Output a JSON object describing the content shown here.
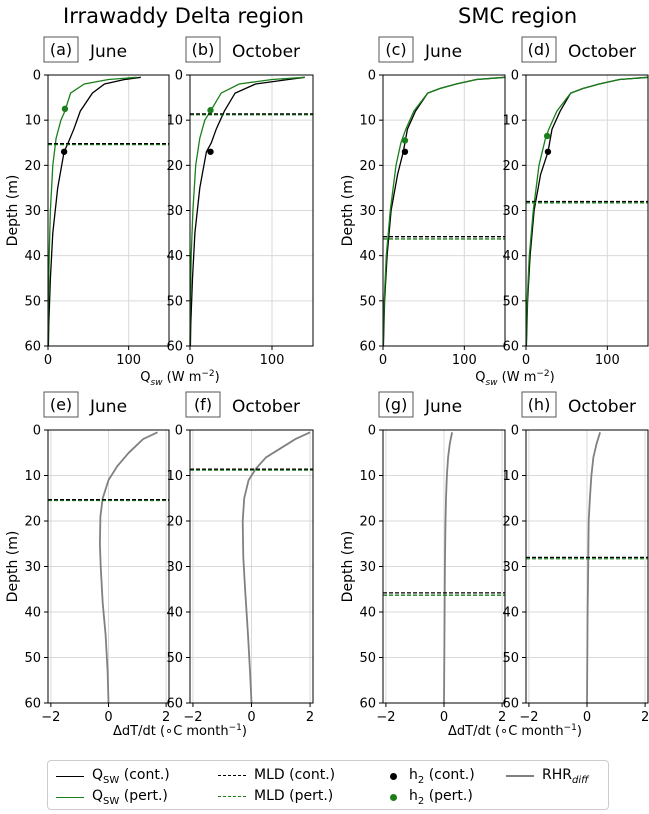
{
  "titles": {
    "left_region": "Irrawaddy Delta region",
    "right_region": "SMC region"
  },
  "colors": {
    "control": "#000000",
    "perturbed": "#1a7f1a",
    "rhr_diff": "#808080",
    "grid": "#d9d9d9"
  },
  "legend": {
    "qsw_cont": "Q_SW (cont.)",
    "qsw_pert": "Q_SW (pert.)",
    "mld_cont": "MLD (cont.)",
    "mld_pert": "MLD (pert.)",
    "h2_cont": "h_2 (cont.)",
    "h2_pert": "h_2 (pert.)",
    "rhr_diff": "RHR_diff"
  },
  "chart_data": [
    {
      "type": "line",
      "tag": "(a)",
      "title": "June",
      "xlim": [
        0,
        150
      ],
      "ylim": [
        60,
        0
      ],
      "y_inverted": true,
      "xticks": [
        0,
        100
      ],
      "yticks": [
        0,
        10,
        20,
        30,
        40,
        50,
        60
      ],
      "ylabel": "Depth (m)",
      "xlabel": "",
      "series": [
        {
          "role": "qsw_cont",
          "x": [
            115,
            95,
            70,
            55,
            40,
            32,
            25,
            20,
            12,
            6,
            3,
            1,
            0.5
          ],
          "y": [
            0.5,
            1,
            2,
            4,
            8,
            12,
            15,
            17,
            25,
            35,
            45,
            55,
            60
          ]
        },
        {
          "role": "qsw_pert",
          "x": [
            110,
            75,
            45,
            28,
            21,
            16,
            10,
            6,
            3,
            1.5,
            0.5,
            0.2,
            0
          ],
          "y": [
            0.5,
            1,
            2,
            4,
            8,
            10,
            14,
            20,
            30,
            40,
            50,
            55,
            60
          ]
        }
      ],
      "mld": {
        "cont": 15.2,
        "pert": 15.4
      },
      "h2": {
        "cont": {
          "x": 20,
          "y": 17
        },
        "pert": {
          "x": 21,
          "y": 7.5
        }
      }
    },
    {
      "type": "line",
      "tag": "(b)",
      "title": "October",
      "xlim": [
        0,
        150
      ],
      "ylim": [
        60,
        0
      ],
      "y_inverted": true,
      "xticks": [
        0,
        100
      ],
      "yticks": [
        0,
        10,
        20,
        30,
        40,
        50,
        60
      ],
      "ylabel": "",
      "xlabel": "",
      "series": [
        {
          "role": "qsw_cont",
          "x": [
            140,
            120,
            80,
            55,
            42,
            32,
            26,
            20,
            12,
            6,
            3,
            1,
            0.5
          ],
          "y": [
            0.5,
            1,
            2,
            4,
            8,
            12,
            15,
            17,
            25,
            35,
            45,
            55,
            60
          ]
        },
        {
          "role": "qsw_pert",
          "x": [
            140,
            100,
            60,
            38,
            25,
            18,
            12,
            7,
            3.5,
            1.5,
            0.5,
            0.2,
            0
          ],
          "y": [
            0.5,
            1,
            2,
            4,
            8,
            10,
            14,
            20,
            30,
            40,
            50,
            55,
            60
          ]
        }
      ],
      "mld": {
        "cont": 8.6,
        "pert": 8.8
      },
      "h2": {
        "cont": {
          "x": 25,
          "y": 17
        },
        "pert": {
          "x": 25,
          "y": 7.8
        }
      }
    },
    {
      "type": "line",
      "tag": "(c)",
      "title": "June",
      "xlim": [
        0,
        150
      ],
      "ylim": [
        60,
        0
      ],
      "y_inverted": true,
      "xticks": [
        0,
        100
      ],
      "yticks": [
        0,
        10,
        20,
        30,
        40,
        50,
        60
      ],
      "ylabel": "Depth (m)",
      "xlabel": "",
      "series": [
        {
          "role": "qsw_cont",
          "x": [
            150,
            115,
            90,
            70,
            55,
            40,
            30,
            25,
            18,
            10,
            5,
            2,
            0.5
          ],
          "y": [
            0.5,
            1,
            2,
            3,
            4,
            8,
            12,
            17,
            22,
            30,
            40,
            50,
            60
          ]
        },
        {
          "role": "qsw_pert",
          "x": [
            150,
            115,
            90,
            70,
            55,
            38,
            28,
            22,
            16,
            9,
            4,
            1.5,
            0.3
          ],
          "y": [
            0.5,
            1,
            2,
            3,
            4,
            8,
            12,
            15,
            20,
            30,
            40,
            50,
            60
          ]
        }
      ],
      "mld": {
        "cont": 35.8,
        "pert": 36.3
      },
      "h2": {
        "cont": {
          "x": 27,
          "y": 17
        },
        "pert": {
          "x": 27,
          "y": 14.5
        }
      }
    },
    {
      "type": "line",
      "tag": "(d)",
      "title": "October",
      "xlim": [
        0,
        150
      ],
      "ylim": [
        60,
        0
      ],
      "y_inverted": true,
      "xticks": [
        0,
        100
      ],
      "yticks": [
        0,
        10,
        20,
        30,
        40,
        50,
        60
      ],
      "ylabel": "",
      "xlabel": "",
      "series": [
        {
          "role": "qsw_cont",
          "x": [
            150,
            115,
            90,
            70,
            55,
            42,
            32,
            27,
            18,
            10,
            5,
            2,
            0.5
          ],
          "y": [
            0.5,
            1,
            2,
            3,
            4,
            8,
            12,
            17,
            22,
            30,
            40,
            50,
            60
          ]
        },
        {
          "role": "qsw_pert",
          "x": [
            150,
            115,
            90,
            70,
            55,
            38,
            28,
            24,
            16,
            9,
            4,
            1.5,
            0.3
          ],
          "y": [
            0.5,
            1,
            2,
            3,
            4,
            8,
            12,
            14,
            20,
            30,
            40,
            50,
            60
          ]
        }
      ],
      "mld": {
        "cont": 28.0,
        "pert": 28.3
      },
      "h2": {
        "cont": {
          "x": 27,
          "y": 17
        },
        "pert": {
          "x": 26,
          "y": 13.5
        }
      }
    },
    {
      "type": "line",
      "tag": "(e)",
      "title": "June",
      "xlim": [
        -2.1,
        2.1
      ],
      "ylim": [
        60,
        0
      ],
      "y_inverted": true,
      "xticks": [
        -2,
        0,
        2
      ],
      "yticks": [
        0,
        10,
        20,
        30,
        40,
        50,
        60
      ],
      "ylabel": "Depth (m)",
      "xlabel": "",
      "series": [
        {
          "role": "rhr_diff",
          "x": [
            1.7,
            1.2,
            0.7,
            0.3,
            0.0,
            -0.2,
            -0.28,
            -0.3,
            -0.27,
            -0.2,
            -0.1,
            -0.03,
            0.0
          ],
          "y": [
            0.5,
            2,
            5,
            8,
            11,
            15,
            19,
            25,
            30,
            38,
            45,
            53,
            60
          ]
        }
      ],
      "mld": {
        "cont": 15.3,
        "pert": 15.5
      }
    },
    {
      "type": "line",
      "tag": "(f)",
      "title": "October",
      "xlim": [
        -2.1,
        2.1
      ],
      "ylim": [
        60,
        0
      ],
      "y_inverted": true,
      "xticks": [
        -2,
        0,
        2
      ],
      "yticks": [
        0,
        10,
        20,
        30,
        40,
        50,
        60
      ],
      "ylabel": "",
      "xlabel": "",
      "series": [
        {
          "role": "rhr_diff",
          "x": [
            2.0,
            1.5,
            1.0,
            0.5,
            0.15,
            -0.1,
            -0.25,
            -0.3,
            -0.28,
            -0.22,
            -0.12,
            -0.05,
            0.0
          ],
          "y": [
            0.5,
            2,
            4,
            6,
            8.5,
            11,
            15,
            20,
            28,
            35,
            45,
            53,
            60
          ]
        }
      ],
      "mld": {
        "cont": 8.6,
        "pert": 8.8
      }
    },
    {
      "type": "line",
      "tag": "(g)",
      "title": "June",
      "xlim": [
        -2.1,
        2.1
      ],
      "ylim": [
        60,
        0
      ],
      "y_inverted": true,
      "xticks": [
        -2,
        0,
        2
      ],
      "yticks": [
        0,
        10,
        20,
        30,
        40,
        50,
        60
      ],
      "ylabel": "Depth (m)",
      "xlabel": "",
      "series": [
        {
          "role": "rhr_diff",
          "x": [
            0.28,
            0.2,
            0.14,
            0.1,
            0.07,
            0.05,
            0.03,
            0.02,
            0.01,
            0.0
          ],
          "y": [
            0.5,
            3,
            6,
            10,
            15,
            20,
            30,
            40,
            50,
            60
          ]
        }
      ],
      "mld": {
        "cont": 35.8,
        "pert": 36.3
      }
    },
    {
      "type": "line",
      "tag": "(h)",
      "title": "October",
      "xlim": [
        -2.1,
        2.1
      ],
      "ylim": [
        60,
        0
      ],
      "y_inverted": true,
      "xticks": [
        -2,
        0,
        2
      ],
      "yticks": [
        0,
        10,
        20,
        30,
        40,
        50,
        60
      ],
      "ylabel": "",
      "xlabel": "",
      "series": [
        {
          "role": "rhr_diff",
          "x": [
            0.45,
            0.33,
            0.22,
            0.15,
            0.1,
            0.06,
            0.04,
            0.02,
            0.01,
            0.0
          ],
          "y": [
            0.5,
            3,
            6,
            10,
            15,
            20,
            30,
            40,
            50,
            60
          ]
        }
      ],
      "mld": {
        "cont": 28.0,
        "pert": 28.3
      }
    }
  ],
  "shared_xlabels": {
    "top": "Q_sw (W m^-2)",
    "bottom": "ΔdT/dt (°C month^-1)"
  }
}
